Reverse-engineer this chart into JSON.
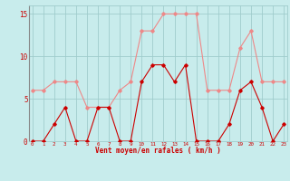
{
  "x": [
    0,
    1,
    2,
    3,
    4,
    5,
    6,
    7,
    8,
    9,
    10,
    11,
    12,
    13,
    14,
    15,
    16,
    17,
    18,
    19,
    20,
    21,
    22,
    23
  ],
  "vent_moyen": [
    0,
    0,
    2,
    4,
    0,
    0,
    4,
    4,
    0,
    0,
    7,
    9,
    9,
    7,
    9,
    0,
    0,
    0,
    2,
    6,
    7,
    4,
    0,
    2
  ],
  "en_rafales": [
    6,
    6,
    7,
    7,
    7,
    4,
    4,
    4,
    6,
    7,
    13,
    13,
    15,
    15,
    15,
    15,
    6,
    6,
    6,
    11,
    13,
    7,
    7,
    7
  ],
  "bg_color": "#c8ecec",
  "grid_color": "#a0cccc",
  "line_color_moyen": "#cc0000",
  "line_color_rafales": "#ee8888",
  "xlabel": "Vent moyen/en rafales ( km/h )",
  "ylabel_ticks": [
    0,
    5,
    10,
    15
  ],
  "xlim": [
    0,
    23
  ],
  "ylim": [
    0,
    16
  ],
  "xlabel_color": "#cc0000",
  "tick_color": "#cc0000"
}
